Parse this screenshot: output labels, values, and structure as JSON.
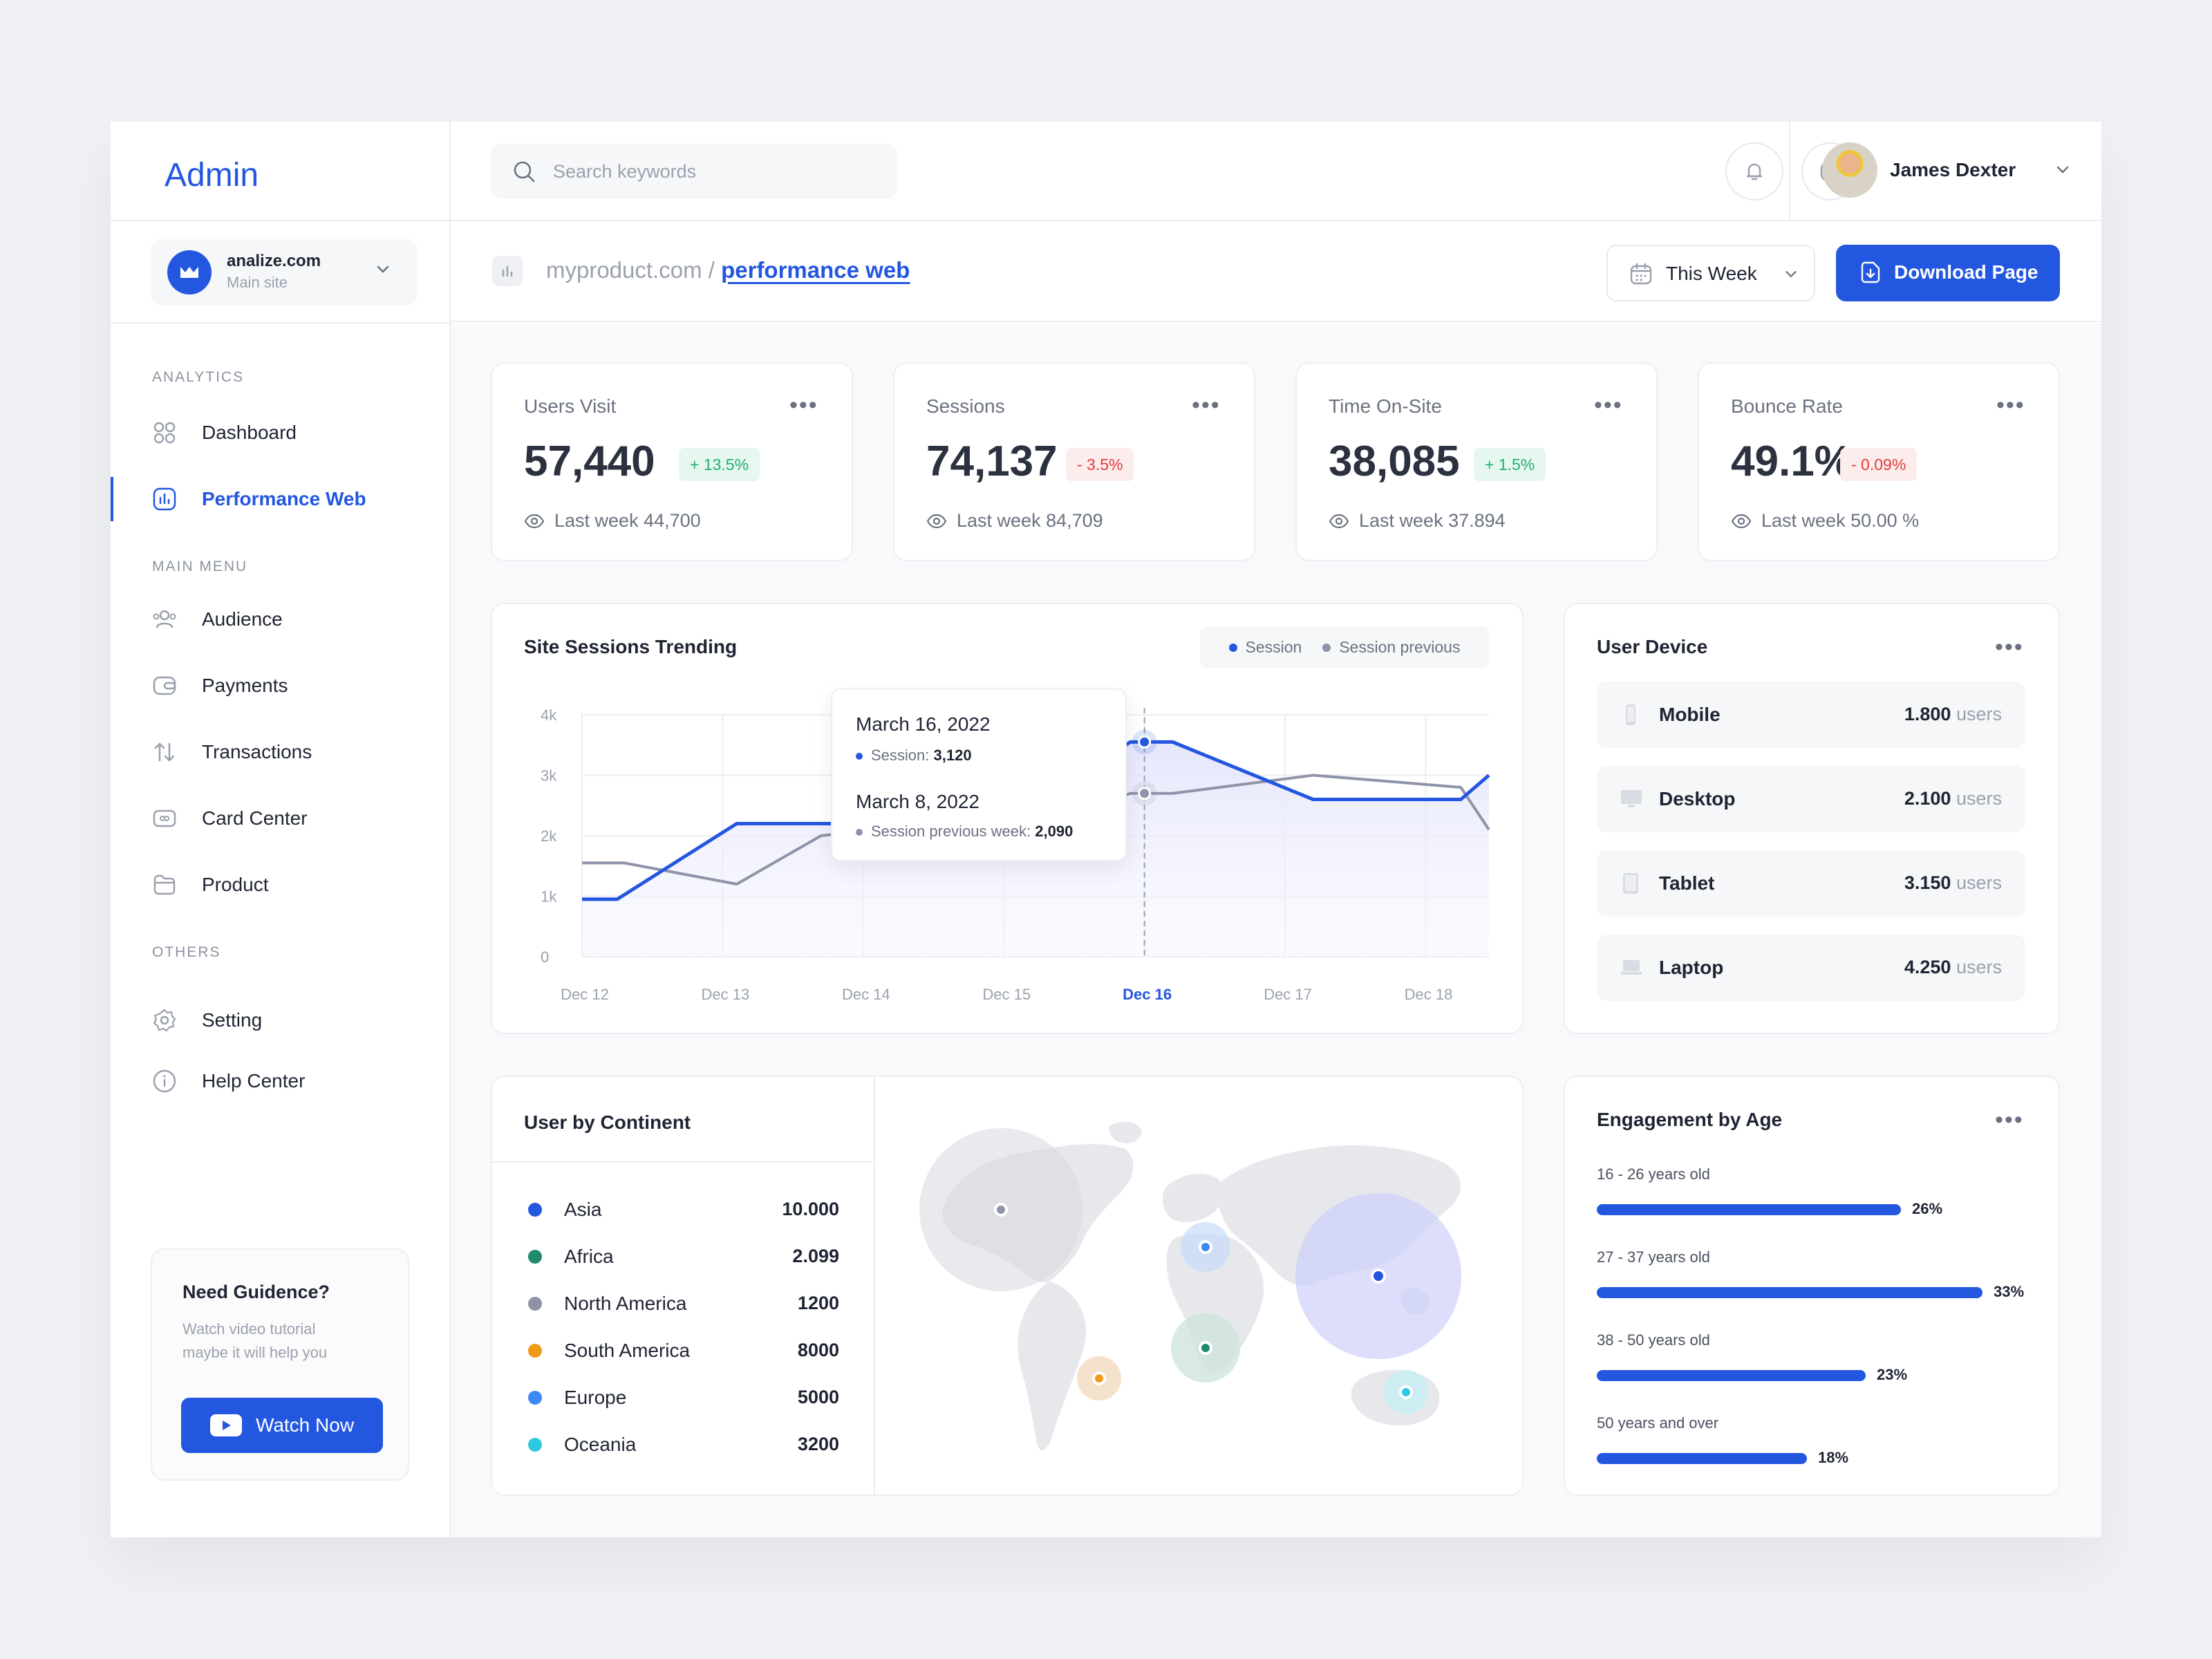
{
  "app": {
    "brand": "Admin"
  },
  "site": {
    "name": "analize.com",
    "sub": "Main site"
  },
  "sidebar": {
    "sections": [
      "ANALYTICS",
      "MAIN MENU",
      "OTHERS"
    ],
    "items": [
      {
        "label": "Dashboard",
        "icon": "grid-icon"
      },
      {
        "label": "Performance Web",
        "icon": "bar-chart-icon",
        "active": true
      },
      {
        "label": "Audience",
        "icon": "users-icon"
      },
      {
        "label": "Payments",
        "icon": "wallet-icon"
      },
      {
        "label": "Transactions",
        "icon": "arrows-icon"
      },
      {
        "label": "Card Center",
        "icon": "card-icon"
      },
      {
        "label": "Product",
        "icon": "folder-icon"
      },
      {
        "label": "Setting",
        "icon": "gear-icon"
      },
      {
        "label": "Help Center",
        "icon": "info-icon"
      }
    ]
  },
  "guide": {
    "title": "Need Guidence?",
    "text": "Watch video tutorial maybe it will help you",
    "button": "Watch Now"
  },
  "topbar": {
    "search_placeholder": "Search keywords",
    "user_name": "James Dexter"
  },
  "breadcrumb": {
    "root": "myproduct.com",
    "sep": " / ",
    "current": "performance web"
  },
  "controls": {
    "period": "This Week",
    "download": "Download Page"
  },
  "stats": [
    {
      "title": "Users Visit",
      "value": "57,440",
      "change": "+ 13.5%",
      "trend": "up",
      "last": "Last week 44,700"
    },
    {
      "title": "Sessions",
      "value": "74,137",
      "change": "- 3.5%",
      "trend": "down",
      "last": "Last week 84,709"
    },
    {
      "title": "Time On-Site",
      "value": "38,085",
      "change": "+ 1.5%",
      "trend": "up",
      "last": "Last week 37.894"
    },
    {
      "title": "Bounce Rate",
      "value": "49.1%",
      "change": "- 0.09%",
      "trend": "down",
      "last": "Last week 50.00 %"
    }
  ],
  "sessions_card": {
    "title": "Site Sessions Trending",
    "tooltip": {
      "date1": "March 16, 2022",
      "label1": "Session:",
      "value1": "3,120",
      "date2": "March 8, 2022",
      "label2": "Session previous week:",
      "value2": "2,090"
    }
  },
  "chart_data": {
    "type": "line",
    "categories": [
      "Dec 12",
      "Dec 13",
      "Dec 14",
      "Dec 15",
      "Dec 16",
      "Dec 17",
      "Dec 18"
    ],
    "highlight_category": "Dec 16",
    "y_ticks": [
      "0",
      "1k",
      "2k",
      "3k",
      "4k"
    ],
    "ylim": [
      0,
      4000
    ],
    "grid": true,
    "legend_position": "top-right",
    "x_range": [
      0,
      6.45
    ],
    "series": [
      {
        "name": "Session",
        "color": "#2457e0",
        "points": [
          [
            0,
            950
          ],
          [
            0.25,
            950
          ],
          [
            1.1,
            2200
          ],
          [
            1.7,
            2200
          ],
          [
            2.3,
            2200
          ],
          [
            3,
            2200
          ],
          [
            3.9,
            3550
          ],
          [
            4.2,
            3550
          ],
          [
            5.2,
            2600
          ],
          [
            6.25,
            2600
          ],
          [
            6.45,
            3000
          ]
        ]
      },
      {
        "name": "Session previous",
        "color": "#8f93a8",
        "points": [
          [
            0,
            1550
          ],
          [
            0.3,
            1550
          ],
          [
            1.1,
            1200
          ],
          [
            1.7,
            2000
          ],
          [
            2.5,
            2200
          ],
          [
            3.3,
            2200
          ],
          [
            3.9,
            2700
          ],
          [
            4.2,
            2700
          ],
          [
            5.2,
            3000
          ],
          [
            6.25,
            2800
          ],
          [
            6.45,
            2100
          ]
        ]
      }
    ]
  },
  "devices": {
    "title": "User Device",
    "unit": "users",
    "rows": [
      {
        "name": "Mobile",
        "value": "1.800",
        "icon": "phone-icon"
      },
      {
        "name": "Desktop",
        "value": "2.100",
        "icon": "monitor-icon"
      },
      {
        "name": "Tablet",
        "value": "3.150",
        "icon": "tablet-icon"
      },
      {
        "name": "Laptop",
        "value": "4.250",
        "icon": "laptop-icon"
      }
    ]
  },
  "continents": {
    "title": "User by Continent",
    "rows": [
      {
        "name": "Asia",
        "value": "10.000",
        "color": "#2457e0"
      },
      {
        "name": "Africa",
        "value": "2.099",
        "color": "#1f8a6e"
      },
      {
        "name": "North America",
        "value": "1200",
        "color": "#9093a6"
      },
      {
        "name": "South America",
        "value": "8000",
        "color": "#f09a1a"
      },
      {
        "name": "Europe",
        "value": "5000",
        "color": "#3d87f5"
      },
      {
        "name": "Oceania",
        "value": "3200",
        "color": "#2ec8e0"
      }
    ]
  },
  "engagement": {
    "title": "Engagement by Age",
    "rows": [
      {
        "label": "16 - 26 years old",
        "pct": "26%",
        "fraction": 0.26
      },
      {
        "label": "27 - 37 years old",
        "pct": "33%",
        "fraction": 0.33
      },
      {
        "label": "38 - 50 years old",
        "pct": "23%",
        "fraction": 0.23
      },
      {
        "label": "50 years and over",
        "pct": "18%",
        "fraction": 0.18
      }
    ]
  },
  "colors": {
    "accent": "#2457e0",
    "positive": "#22b06b",
    "negative": "#e03b3b"
  }
}
